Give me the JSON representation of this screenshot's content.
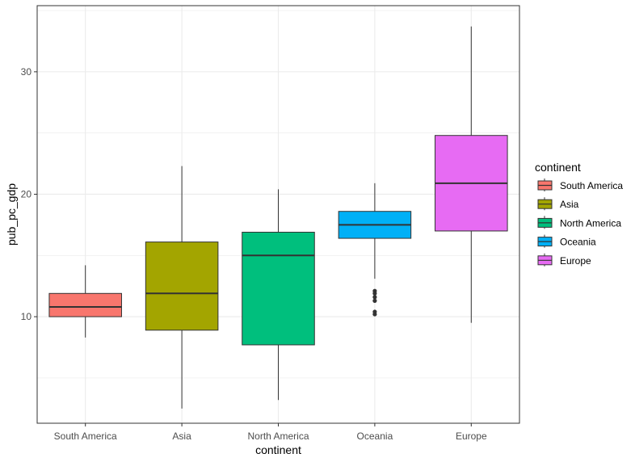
{
  "chart_data": {
    "type": "boxplot",
    "xlabel": "continent",
    "ylabel": "pub_pc_gdp",
    "categories": [
      "South America",
      "Asia",
      "North America",
      "Oceania",
      "Europe"
    ],
    "ylim": [
      1.3,
      35.4
    ],
    "yticks": [
      10,
      20,
      30
    ],
    "grid": true,
    "legend": {
      "title": "continent",
      "position": "right"
    },
    "colors": {
      "South America": "#F8766D",
      "Asia": "#A3A500",
      "North America": "#00BF7D",
      "Oceania": "#00B0F6",
      "Europe": "#E76BF3"
    },
    "boxes": [
      {
        "category": "South America",
        "min": 8.3,
        "q1": 10.0,
        "median": 10.8,
        "q3": 11.9,
        "max": 14.2,
        "outliers": []
      },
      {
        "category": "Asia",
        "min": 2.5,
        "q1": 8.9,
        "median": 11.9,
        "q3": 16.1,
        "max": 22.3,
        "outliers": []
      },
      {
        "category": "North America",
        "min": 3.2,
        "q1": 7.7,
        "median": 15.0,
        "q3": 16.9,
        "max": 20.4,
        "outliers": []
      },
      {
        "category": "Oceania",
        "min": 13.1,
        "q1": 16.4,
        "median": 17.5,
        "q3": 18.6,
        "max": 20.9,
        "outliers": [
          12.1,
          11.9,
          11.6,
          11.3,
          10.4,
          10.2
        ]
      },
      {
        "category": "Europe",
        "min": 9.5,
        "q1": 17.0,
        "median": 20.9,
        "q3": 24.8,
        "max": 33.7,
        "outliers": []
      }
    ]
  }
}
